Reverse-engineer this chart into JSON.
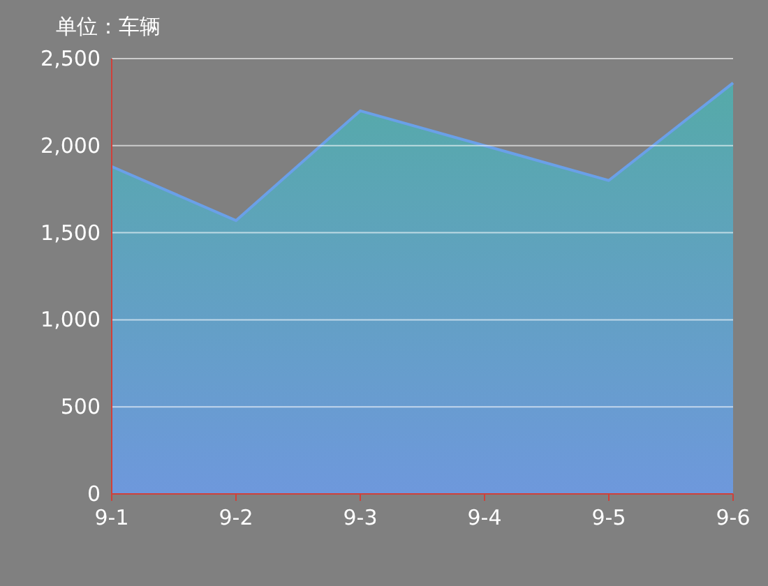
{
  "chart_data": {
    "type": "area",
    "ylabel": "单位：车辆",
    "categories": [
      "9-1",
      "9-2",
      "9-3",
      "9-4",
      "9-5",
      "9-6"
    ],
    "series": [
      {
        "color": "#6aa0e8",
        "values": [
          1880,
          1570,
          2200,
          2000,
          1800,
          2360
        ]
      }
    ],
    "ylim": [
      0,
      2500
    ],
    "yticks": [
      {
        "value": 0,
        "label": "0"
      },
      {
        "value": 500,
        "label": "500"
      },
      {
        "value": 1000,
        "label": "1,000"
      },
      {
        "value": 1500,
        "label": "1,500"
      },
      {
        "value": 2000,
        "label": "2,000"
      },
      {
        "value": 2500,
        "label": "2,500"
      }
    ],
    "grid": "y"
  }
}
